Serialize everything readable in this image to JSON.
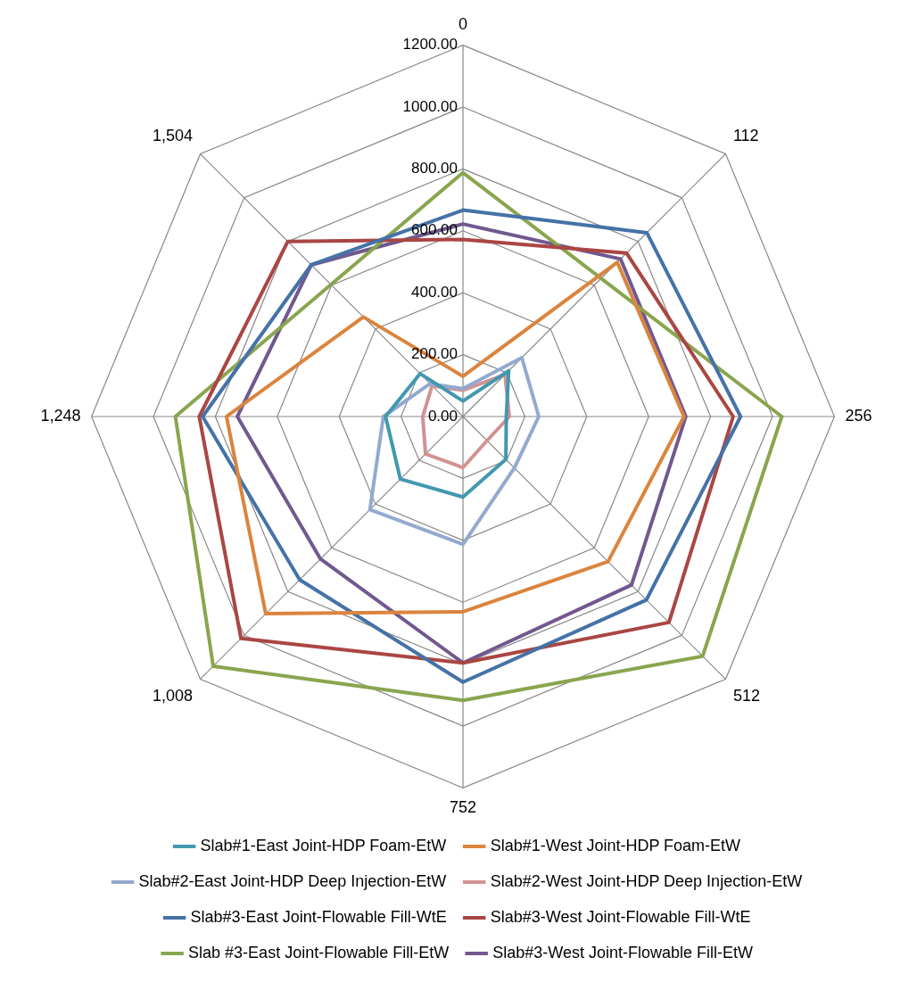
{
  "chart_data": {
    "type": "radar",
    "categories": [
      "0",
      "112",
      "256",
      "512",
      "752",
      "1,008",
      "1,248",
      "1,504"
    ],
    "series": [
      {
        "name": "Slab#1-East Joint-HDP Foam-EtW",
        "color": "#4198af",
        "values": [
          50,
          209,
          140,
          196,
          260,
          286,
          250,
          196
        ]
      },
      {
        "name": "Slab#1-West Joint-HDP Foam-EtW",
        "color": "#db843d",
        "values": [
          130,
          705,
          714,
          663,
          631,
          901,
          764,
          455
        ]
      },
      {
        "name": "Slab#2-East Joint-HDP Deep Injection-EtW",
        "color": "#93a9cf",
        "values": [
          90,
          269,
          245,
          235,
          413,
          425,
          257,
          150
        ]
      },
      {
        "name": "Slab#2-West Joint-HDP Deep Injection-EtW",
        "color": "#d19392",
        "values": [
          85,
          192,
          150,
          110,
          165,
          171,
          130,
          141
        ]
      },
      {
        "name": "Slab#3-East Joint-Flowable Fill-WtE",
        "color": "#4572a7",
        "values": [
          667,
          840,
          897,
          838,
          858,
          746,
          841,
          693
        ]
      },
      {
        "name": "Slab#3-West Joint-Flowable Fill-WtE",
        "color": "#aa4643",
        "values": [
          572,
          747,
          873,
          941,
          796,
          1014,
          852,
          800
        ]
      },
      {
        "name": "Slab #3-East Joint-Flowable Fill-EtW",
        "color": "#89a54e",
        "values": [
          788,
          631,
          1030,
          1095,
          917,
          1141,
          929,
          603
        ]
      },
      {
        "name": "Slab#3-West Joint-Flowable Fill-EtW",
        "color": "#71588f",
        "values": [
          622,
          720,
          720,
          770,
          796,
          651,
          729,
          693
        ]
      }
    ],
    "ylim": [
      0,
      1200
    ],
    "yticks": [
      {
        "value": 0,
        "label": "0.00"
      },
      {
        "value": 200,
        "label": "200.00"
      },
      {
        "value": 400,
        "label": "400.00"
      },
      {
        "value": 600,
        "label": "600.00"
      },
      {
        "value": 800,
        "label": "800.00"
      },
      {
        "value": 1000,
        "label": "1000.00"
      },
      {
        "value": 1200,
        "label": "1200.00"
      }
    ],
    "grid": true,
    "legend": "bottom",
    "marker": "none",
    "line_style": "solid"
  }
}
